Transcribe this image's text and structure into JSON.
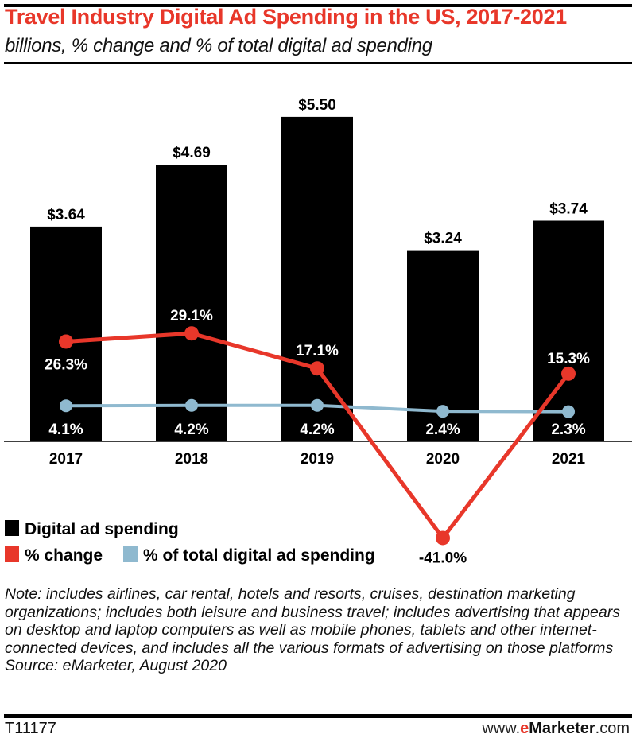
{
  "chart_data": {
    "type": "bar+line",
    "title": "Travel Industry Digital Ad Spending in the US, 2017-2021",
    "subtitle": "billions, % change and % of total digital ad spending",
    "categories": [
      "2017",
      "2018",
      "2019",
      "2020",
      "2021"
    ],
    "series": [
      {
        "name": "Digital ad spending",
        "type": "bar",
        "color": "#000000",
        "values": [
          3.64,
          4.69,
          5.5,
          3.24,
          3.74
        ],
        "labels": [
          "$3.64",
          "$4.69",
          "$5.50",
          "$3.24",
          "$3.74"
        ]
      },
      {
        "name": "% change",
        "type": "line",
        "color": "#e8372a",
        "values": [
          26.3,
          29.1,
          17.1,
          -41.0,
          15.3
        ],
        "labels": [
          "26.3%",
          "29.1%",
          "17.1%",
          "-41.0%",
          "15.3%"
        ]
      },
      {
        "name": "% of total digital ad spending",
        "type": "line",
        "color": "#8fb9cf",
        "values": [
          4.1,
          4.2,
          4.2,
          2.4,
          2.3
        ],
        "labels": [
          "4.1%",
          "4.2%",
          "4.2%",
          "2.4%",
          "2.3%"
        ]
      }
    ],
    "grid": false,
    "legend_position": "bottom-left"
  },
  "footer": {
    "note": "Note: includes airlines, car rental, hotels and resorts, cruises, destination marketing organizations; includes both leisure and business travel; includes advertising that appears on desktop and laptop computers as well as mobile phones, tablets and other internet-connected devices, and includes all the various formats of advertising on those platforms",
    "source": "Source: eMarketer, August 2020",
    "code": "T11177",
    "site_prefix": "www.",
    "site_e": "e",
    "site_brand": "Marketer",
    "site_suffix": ".com"
  }
}
